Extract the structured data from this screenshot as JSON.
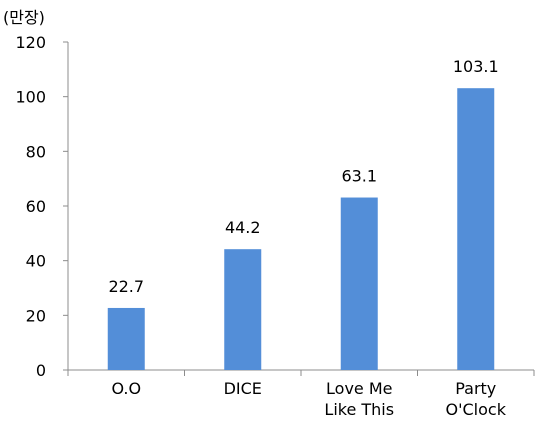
{
  "chart_data": {
    "type": "bar",
    "unit_label": "(만장)",
    "categories": [
      [
        "O.O"
      ],
      [
        "DICE"
      ],
      [
        "Love Me",
        "Like This"
      ],
      [
        "Party",
        "O'Clock"
      ]
    ],
    "values": [
      22.7,
      44.2,
      63.1,
      103.1
    ],
    "data_labels": [
      "22.7",
      "44.2",
      "63.1",
      "103.1"
    ],
    "ylim": [
      0,
      120
    ],
    "yticks": [
      0,
      20,
      40,
      60,
      80,
      100,
      120
    ],
    "grid": false,
    "legend": "none",
    "bar_color": "#538ed8",
    "axis_color": "#8c8c8c"
  }
}
